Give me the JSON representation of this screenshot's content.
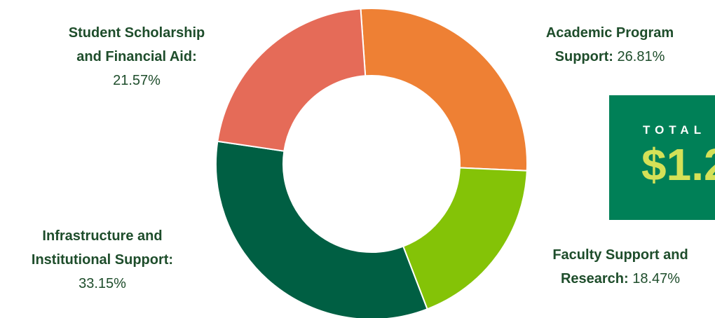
{
  "chart_data": {
    "type": "pie",
    "donut": true,
    "title": "",
    "categories": [
      "Student Scholarship and Financial Aid",
      "Academic Program Support",
      "Faculty Support and Research",
      "Infrastructure and Institutional Support"
    ],
    "values": [
      21.57,
      26.81,
      18.47,
      33.15
    ],
    "value_labels": [
      "21.57%",
      "26.81%",
      "18.47%",
      "33.15%"
    ],
    "colors": [
      "#e56b58",
      "#ee8034",
      "#84c307",
      "#005f43"
    ],
    "label_lines": [
      [
        "Student Scholarship",
        "and Financial Aid:"
      ],
      [
        "Academic Program",
        "Support:"
      ],
      [
        "Faculty Support and",
        "Research:"
      ],
      [
        "Infrastructure and",
        "Institutional Support:"
      ]
    ],
    "legend": "none"
  },
  "total": {
    "label": "TOTAL",
    "value": "$1.2"
  }
}
